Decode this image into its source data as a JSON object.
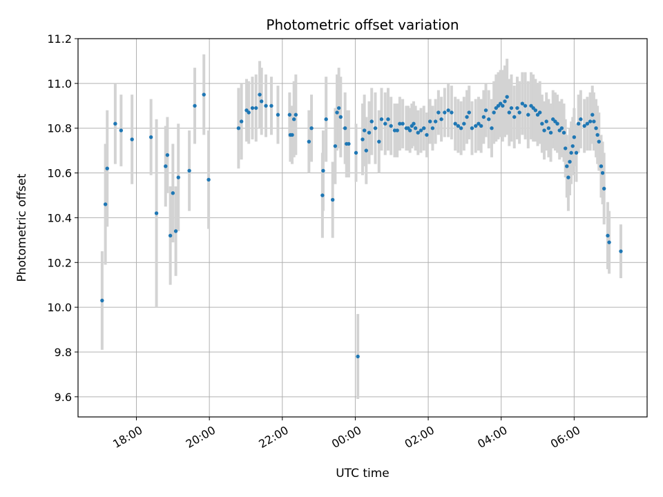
{
  "chart_data": {
    "type": "scatter",
    "title": "Photometric offset variation",
    "xlabel": "UTC time",
    "ylabel": "Photometric offset",
    "x_unit": "UTC hours (24+ = next day)",
    "xlim": [
      16.4,
      32.0
    ],
    "ylim": [
      9.51,
      11.2
    ],
    "grid": true,
    "x_ticks": [
      {
        "value": 18,
        "label": "18:00"
      },
      {
        "value": 20,
        "label": "20:00"
      },
      {
        "value": 22,
        "label": "22:00"
      },
      {
        "value": 24,
        "label": "00:00"
      },
      {
        "value": 26,
        "label": "02:00"
      },
      {
        "value": 28,
        "label": "04:00"
      },
      {
        "value": 30,
        "label": "06:00"
      }
    ],
    "y_ticks": [
      {
        "value": 9.6,
        "label": "9.6"
      },
      {
        "value": 9.8,
        "label": "9.8"
      },
      {
        "value": 10.0,
        "label": "10.0"
      },
      {
        "value": 10.2,
        "label": "10.2"
      },
      {
        "value": 10.4,
        "label": "10.4"
      },
      {
        "value": 10.6,
        "label": "10.6"
      },
      {
        "value": 10.8,
        "label": "10.8"
      },
      {
        "value": 11.0,
        "label": "11.0"
      },
      {
        "value": 11.2,
        "label": "11.2"
      }
    ],
    "point_color": "#1f77b4",
    "errorbar_color": "#d3d3d3",
    "points": [
      [
        17.06,
        10.03,
        0.22
      ],
      [
        17.15,
        10.46,
        0.27
      ],
      [
        17.2,
        10.62,
        0.26
      ],
      [
        17.42,
        10.82,
        0.18
      ],
      [
        17.58,
        10.79,
        0.16
      ],
      [
        17.88,
        10.75,
        0.2
      ],
      [
        18.4,
        10.76,
        0.17
      ],
      [
        18.55,
        10.42,
        0.42
      ],
      [
        18.8,
        10.63,
        0.18
      ],
      [
        18.85,
        10.68,
        0.17
      ],
      [
        18.93,
        10.32,
        0.22
      ],
      [
        19.0,
        10.51,
        0.22
      ],
      [
        19.08,
        10.34,
        0.2
      ],
      [
        19.15,
        10.58,
        0.24
      ],
      [
        19.45,
        10.61,
        0.18
      ],
      [
        19.6,
        10.9,
        0.17
      ],
      [
        19.85,
        10.95,
        0.18
      ],
      [
        19.98,
        10.57,
        0.22
      ],
      [
        20.8,
        10.8,
        0.18
      ],
      [
        20.88,
        10.83,
        0.17
      ],
      [
        21.02,
        10.88,
        0.14
      ],
      [
        21.08,
        10.87,
        0.14
      ],
      [
        21.18,
        10.89,
        0.14
      ],
      [
        21.28,
        10.89,
        0.15
      ],
      [
        21.38,
        10.95,
        0.15
      ],
      [
        21.43,
        10.92,
        0.15
      ],
      [
        21.55,
        10.9,
        0.14
      ],
      [
        21.7,
        10.9,
        0.13
      ],
      [
        21.88,
        10.86,
        0.13
      ],
      [
        22.2,
        10.86,
        0.1
      ],
      [
        22.22,
        10.77,
        0.12
      ],
      [
        22.27,
        10.77,
        0.13
      ],
      [
        22.32,
        10.84,
        0.17
      ],
      [
        22.37,
        10.86,
        0.18
      ],
      [
        22.73,
        10.74,
        0.14
      ],
      [
        22.8,
        10.8,
        0.15
      ],
      [
        23.1,
        10.5,
        0.19
      ],
      [
        23.12,
        10.61,
        0.18
      ],
      [
        23.2,
        10.84,
        0.19
      ],
      [
        23.38,
        10.48,
        0.17
      ],
      [
        23.45,
        10.72,
        0.17
      ],
      [
        23.5,
        10.87,
        0.17
      ],
      [
        23.55,
        10.89,
        0.18
      ],
      [
        23.6,
        10.85,
        0.18
      ],
      [
        23.72,
        10.8,
        0.16
      ],
      [
        23.76,
        10.73,
        0.15
      ],
      [
        23.82,
        10.73,
        0.15
      ],
      [
        24.02,
        10.69,
        0.13
      ],
      [
        24.07,
        9.78,
        0.19
      ],
      [
        24.2,
        10.75,
        0.16
      ],
      [
        24.25,
        10.79,
        0.16
      ],
      [
        24.3,
        10.7,
        0.15
      ],
      [
        24.38,
        10.78,
        0.14
      ],
      [
        24.45,
        10.83,
        0.15
      ],
      [
        24.55,
        10.8,
        0.16
      ],
      [
        24.65,
        10.74,
        0.14
      ],
      [
        24.72,
        10.84,
        0.14
      ],
      [
        24.82,
        10.82,
        0.14
      ],
      [
        24.9,
        10.84,
        0.14
      ],
      [
        24.98,
        10.81,
        0.13
      ],
      [
        25.08,
        10.79,
        0.12
      ],
      [
        25.15,
        10.79,
        0.12
      ],
      [
        25.22,
        10.82,
        0.12
      ],
      [
        25.3,
        10.82,
        0.11
      ],
      [
        25.4,
        10.8,
        0.1
      ],
      [
        25.45,
        10.8,
        0.1
      ],
      [
        25.5,
        10.79,
        0.1
      ],
      [
        25.55,
        10.81,
        0.1
      ],
      [
        25.6,
        10.82,
        0.1
      ],
      [
        25.65,
        10.8,
        0.1
      ],
      [
        25.72,
        10.78,
        0.1
      ],
      [
        25.8,
        10.79,
        0.1
      ],
      [
        25.88,
        10.8,
        0.1
      ],
      [
        25.96,
        10.77,
        0.1
      ],
      [
        26.05,
        10.83,
        0.1
      ],
      [
        26.12,
        10.8,
        0.1
      ],
      [
        26.2,
        10.83,
        0.1
      ],
      [
        26.28,
        10.87,
        0.1
      ],
      [
        26.36,
        10.84,
        0.1
      ],
      [
        26.45,
        10.87,
        0.11
      ],
      [
        26.55,
        10.88,
        0.12
      ],
      [
        26.64,
        10.87,
        0.12
      ],
      [
        26.74,
        10.82,
        0.12
      ],
      [
        26.82,
        10.81,
        0.12
      ],
      [
        26.9,
        10.8,
        0.12
      ],
      [
        26.98,
        10.82,
        0.12
      ],
      [
        27.06,
        10.85,
        0.12
      ],
      [
        27.12,
        10.87,
        0.12
      ],
      [
        27.2,
        10.8,
        0.12
      ],
      [
        27.3,
        10.81,
        0.12
      ],
      [
        27.38,
        10.82,
        0.12
      ],
      [
        27.45,
        10.81,
        0.12
      ],
      [
        27.52,
        10.85,
        0.12
      ],
      [
        27.58,
        10.88,
        0.12
      ],
      [
        27.66,
        10.84,
        0.13
      ],
      [
        27.74,
        10.8,
        0.13
      ],
      [
        27.8,
        10.87,
        0.14
      ],
      [
        27.86,
        10.89,
        0.15
      ],
      [
        27.92,
        10.9,
        0.15
      ],
      [
        27.98,
        10.91,
        0.15
      ],
      [
        28.04,
        10.9,
        0.16
      ],
      [
        28.1,
        10.92,
        0.16
      ],
      [
        28.16,
        10.94,
        0.17
      ],
      [
        28.22,
        10.87,
        0.15
      ],
      [
        28.28,
        10.89,
        0.15
      ],
      [
        28.36,
        10.85,
        0.14
      ],
      [
        28.44,
        10.89,
        0.14
      ],
      [
        28.5,
        10.87,
        0.14
      ],
      [
        28.58,
        10.91,
        0.14
      ],
      [
        28.66,
        10.9,
        0.15
      ],
      [
        28.74,
        10.86,
        0.15
      ],
      [
        28.82,
        10.9,
        0.15
      ],
      [
        28.88,
        10.89,
        0.15
      ],
      [
        28.94,
        10.88,
        0.14
      ],
      [
        29.0,
        10.86,
        0.14
      ],
      [
        29.06,
        10.87,
        0.14
      ],
      [
        29.12,
        10.82,
        0.13
      ],
      [
        29.18,
        10.79,
        0.13
      ],
      [
        29.24,
        10.83,
        0.13
      ],
      [
        29.3,
        10.8,
        0.13
      ],
      [
        29.36,
        10.78,
        0.13
      ],
      [
        29.42,
        10.84,
        0.13
      ],
      [
        29.48,
        10.83,
        0.13
      ],
      [
        29.54,
        10.82,
        0.13
      ],
      [
        29.6,
        10.79,
        0.13
      ],
      [
        29.66,
        10.8,
        0.13
      ],
      [
        29.72,
        10.78,
        0.13
      ],
      [
        29.76,
        10.71,
        0.13
      ],
      [
        29.8,
        10.63,
        0.14
      ],
      [
        29.84,
        10.58,
        0.15
      ],
      [
        29.88,
        10.65,
        0.15
      ],
      [
        29.92,
        10.69,
        0.14
      ],
      [
        29.96,
        10.72,
        0.13
      ],
      [
        30.0,
        10.76,
        0.13
      ],
      [
        30.06,
        10.69,
        0.13
      ],
      [
        30.12,
        10.82,
        0.13
      ],
      [
        30.18,
        10.84,
        0.13
      ],
      [
        30.28,
        10.81,
        0.12
      ],
      [
        30.36,
        10.82,
        0.12
      ],
      [
        30.44,
        10.83,
        0.13
      ],
      [
        30.5,
        10.86,
        0.13
      ],
      [
        30.54,
        10.83,
        0.13
      ],
      [
        30.6,
        10.8,
        0.13
      ],
      [
        30.64,
        10.77,
        0.13
      ],
      [
        30.68,
        10.74,
        0.13
      ],
      [
        30.74,
        10.63,
        0.14
      ],
      [
        30.78,
        10.6,
        0.14
      ],
      [
        30.82,
        10.53,
        0.16
      ],
      [
        30.92,
        10.32,
        0.15
      ],
      [
        30.96,
        10.29,
        0.14
      ],
      [
        31.28,
        10.25,
        0.12
      ]
    ]
  }
}
